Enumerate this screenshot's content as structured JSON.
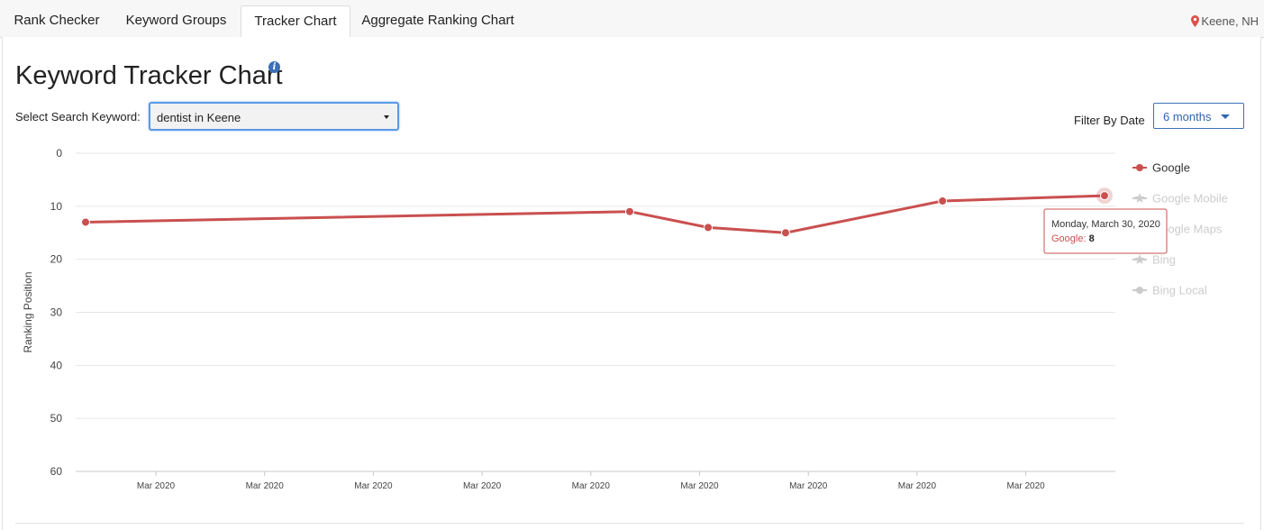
{
  "tabs": [
    {
      "label": "Rank Checker",
      "active": false
    },
    {
      "label": "Keyword Groups",
      "active": false
    },
    {
      "label": "Tracker Chart",
      "active": true
    },
    {
      "label": "Aggregate Ranking Chart",
      "active": false
    }
  ],
  "location": {
    "text": "Keene, NH",
    "icon": "map-pin-icon",
    "color": "#d9534f"
  },
  "page": {
    "title": "Keyword Tracker Chart",
    "info_icon": "info-icon"
  },
  "keyword": {
    "label": "Select Search Keyword:",
    "selected": "dentist in Keene"
  },
  "filter": {
    "label": "Filter By Date",
    "selected": "6 months"
  },
  "tooltip": {
    "date": "Monday, March 30, 2020",
    "series": "Google:",
    "value": "8"
  },
  "colors": {
    "google": "#c9504f",
    "inactive": "#cccccc",
    "accent": "#3d72b8"
  },
  "chart_data": {
    "type": "line",
    "ylabel": "Ranking Position",
    "ylim": [
      0,
      60
    ],
    "y_reversed": true,
    "y_ticks": [
      "0",
      "10",
      "20",
      "30",
      "40",
      "50",
      "60"
    ],
    "x_tick_labels": [
      "Mar 2020",
      "Mar 2020",
      "Mar 2020",
      "Mar 2020",
      "Mar 2020",
      "Mar 2020",
      "Mar 2020",
      "Mar 2020",
      "Mar 2020"
    ],
    "grid": true,
    "legend_position": "right",
    "series": [
      {
        "name": "Google",
        "active": true,
        "marker": "circle",
        "points": [
          {
            "t": 0.0,
            "y": 13
          },
          {
            "t": 0.534,
            "y": 11
          },
          {
            "t": 0.611,
            "y": 14
          },
          {
            "t": 0.687,
            "y": 15
          },
          {
            "t": 0.841,
            "y": 9
          },
          {
            "t": 1.0,
            "y": 8
          }
        ]
      },
      {
        "name": "Google Mobile",
        "active": false,
        "marker": "star"
      },
      {
        "name": "Google Maps",
        "active": false,
        "marker": "star"
      },
      {
        "name": "Bing",
        "active": false,
        "marker": "star"
      },
      {
        "name": "Bing Local",
        "active": false,
        "marker": "circle"
      }
    ]
  }
}
